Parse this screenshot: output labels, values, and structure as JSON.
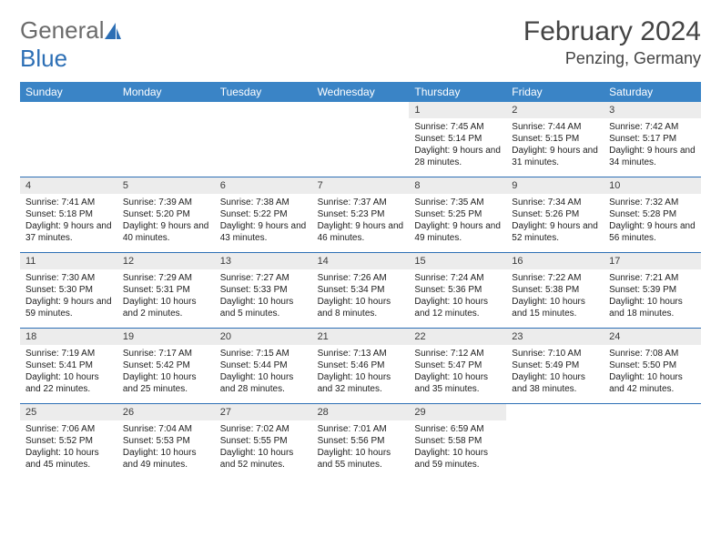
{
  "brand": {
    "part1": "General",
    "part2": "Blue"
  },
  "title": "February 2024",
  "location": "Penzing, Germany",
  "colors": {
    "header_bg": "#3a84c6",
    "header_text": "#ffffff",
    "accent": "#2d6fb5",
    "daynum_bg": "#ececec",
    "text": "#202020",
    "logo_gray": "#6b6b6b"
  },
  "weekdays": [
    "Sunday",
    "Monday",
    "Tuesday",
    "Wednesday",
    "Thursday",
    "Friday",
    "Saturday"
  ],
  "weeks": [
    [
      null,
      null,
      null,
      null,
      {
        "n": "1",
        "sr": "Sunrise: 7:45 AM",
        "ss": "Sunset: 5:14 PM",
        "dl": "Daylight: 9 hours and 28 minutes."
      },
      {
        "n": "2",
        "sr": "Sunrise: 7:44 AM",
        "ss": "Sunset: 5:15 PM",
        "dl": "Daylight: 9 hours and 31 minutes."
      },
      {
        "n": "3",
        "sr": "Sunrise: 7:42 AM",
        "ss": "Sunset: 5:17 PM",
        "dl": "Daylight: 9 hours and 34 minutes."
      }
    ],
    [
      {
        "n": "4",
        "sr": "Sunrise: 7:41 AM",
        "ss": "Sunset: 5:18 PM",
        "dl": "Daylight: 9 hours and 37 minutes."
      },
      {
        "n": "5",
        "sr": "Sunrise: 7:39 AM",
        "ss": "Sunset: 5:20 PM",
        "dl": "Daylight: 9 hours and 40 minutes."
      },
      {
        "n": "6",
        "sr": "Sunrise: 7:38 AM",
        "ss": "Sunset: 5:22 PM",
        "dl": "Daylight: 9 hours and 43 minutes."
      },
      {
        "n": "7",
        "sr": "Sunrise: 7:37 AM",
        "ss": "Sunset: 5:23 PM",
        "dl": "Daylight: 9 hours and 46 minutes."
      },
      {
        "n": "8",
        "sr": "Sunrise: 7:35 AM",
        "ss": "Sunset: 5:25 PM",
        "dl": "Daylight: 9 hours and 49 minutes."
      },
      {
        "n": "9",
        "sr": "Sunrise: 7:34 AM",
        "ss": "Sunset: 5:26 PM",
        "dl": "Daylight: 9 hours and 52 minutes."
      },
      {
        "n": "10",
        "sr": "Sunrise: 7:32 AM",
        "ss": "Sunset: 5:28 PM",
        "dl": "Daylight: 9 hours and 56 minutes."
      }
    ],
    [
      {
        "n": "11",
        "sr": "Sunrise: 7:30 AM",
        "ss": "Sunset: 5:30 PM",
        "dl": "Daylight: 9 hours and 59 minutes."
      },
      {
        "n": "12",
        "sr": "Sunrise: 7:29 AM",
        "ss": "Sunset: 5:31 PM",
        "dl": "Daylight: 10 hours and 2 minutes."
      },
      {
        "n": "13",
        "sr": "Sunrise: 7:27 AM",
        "ss": "Sunset: 5:33 PM",
        "dl": "Daylight: 10 hours and 5 minutes."
      },
      {
        "n": "14",
        "sr": "Sunrise: 7:26 AM",
        "ss": "Sunset: 5:34 PM",
        "dl": "Daylight: 10 hours and 8 minutes."
      },
      {
        "n": "15",
        "sr": "Sunrise: 7:24 AM",
        "ss": "Sunset: 5:36 PM",
        "dl": "Daylight: 10 hours and 12 minutes."
      },
      {
        "n": "16",
        "sr": "Sunrise: 7:22 AM",
        "ss": "Sunset: 5:38 PM",
        "dl": "Daylight: 10 hours and 15 minutes."
      },
      {
        "n": "17",
        "sr": "Sunrise: 7:21 AM",
        "ss": "Sunset: 5:39 PM",
        "dl": "Daylight: 10 hours and 18 minutes."
      }
    ],
    [
      {
        "n": "18",
        "sr": "Sunrise: 7:19 AM",
        "ss": "Sunset: 5:41 PM",
        "dl": "Daylight: 10 hours and 22 minutes."
      },
      {
        "n": "19",
        "sr": "Sunrise: 7:17 AM",
        "ss": "Sunset: 5:42 PM",
        "dl": "Daylight: 10 hours and 25 minutes."
      },
      {
        "n": "20",
        "sr": "Sunrise: 7:15 AM",
        "ss": "Sunset: 5:44 PM",
        "dl": "Daylight: 10 hours and 28 minutes."
      },
      {
        "n": "21",
        "sr": "Sunrise: 7:13 AM",
        "ss": "Sunset: 5:46 PM",
        "dl": "Daylight: 10 hours and 32 minutes."
      },
      {
        "n": "22",
        "sr": "Sunrise: 7:12 AM",
        "ss": "Sunset: 5:47 PM",
        "dl": "Daylight: 10 hours and 35 minutes."
      },
      {
        "n": "23",
        "sr": "Sunrise: 7:10 AM",
        "ss": "Sunset: 5:49 PM",
        "dl": "Daylight: 10 hours and 38 minutes."
      },
      {
        "n": "24",
        "sr": "Sunrise: 7:08 AM",
        "ss": "Sunset: 5:50 PM",
        "dl": "Daylight: 10 hours and 42 minutes."
      }
    ],
    [
      {
        "n": "25",
        "sr": "Sunrise: 7:06 AM",
        "ss": "Sunset: 5:52 PM",
        "dl": "Daylight: 10 hours and 45 minutes."
      },
      {
        "n": "26",
        "sr": "Sunrise: 7:04 AM",
        "ss": "Sunset: 5:53 PM",
        "dl": "Daylight: 10 hours and 49 minutes."
      },
      {
        "n": "27",
        "sr": "Sunrise: 7:02 AM",
        "ss": "Sunset: 5:55 PM",
        "dl": "Daylight: 10 hours and 52 minutes."
      },
      {
        "n": "28",
        "sr": "Sunrise: 7:01 AM",
        "ss": "Sunset: 5:56 PM",
        "dl": "Daylight: 10 hours and 55 minutes."
      },
      {
        "n": "29",
        "sr": "Sunrise: 6:59 AM",
        "ss": "Sunset: 5:58 PM",
        "dl": "Daylight: 10 hours and 59 minutes."
      },
      null,
      null
    ]
  ]
}
